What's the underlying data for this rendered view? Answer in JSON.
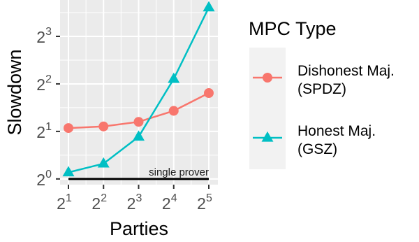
{
  "chart_data": {
    "type": "line",
    "x_label": "Parties",
    "y_label": "Slowdown",
    "x_scale": "log2",
    "y_scale": "log2",
    "x": [
      2,
      4,
      8,
      16,
      32
    ],
    "x_tick_labels": [
      {
        "base": "2",
        "exp": "1"
      },
      {
        "base": "2",
        "exp": "2"
      },
      {
        "base": "2",
        "exp": "3"
      },
      {
        "base": "2",
        "exp": "4"
      },
      {
        "base": "2",
        "exp": "5"
      }
    ],
    "y_ticks": [
      1,
      2,
      4,
      8
    ],
    "y_tick_labels": [
      {
        "base": "2",
        "exp": "0"
      },
      {
        "base": "2",
        "exp": "1"
      },
      {
        "base": "2",
        "exp": "2"
      },
      {
        "base": "2",
        "exp": "3"
      }
    ],
    "ylim": [
      0.92,
      13.6
    ],
    "grid": true,
    "panel_background": "#ebebeb",
    "series": [
      {
        "name": "Dishonest Maj.\n(SPDZ)",
        "label_line1": "Dishonest Maj.",
        "label_line2": "(SPDZ)",
        "color": "#F8766D",
        "marker": "circle",
        "values": [
          2.1,
          2.15,
          2.3,
          2.7,
          3.5
        ]
      },
      {
        "name": "Honest Maj.\n(GSZ)",
        "label_line1": "Honest Maj.",
        "label_line2": "(GSZ)",
        "color": "#00BFC4",
        "marker": "triangle",
        "values": [
          1.1,
          1.25,
          1.85,
          4.3,
          12.2
        ]
      }
    ],
    "reference_line": {
      "y": 1.0,
      "label": "single prover",
      "color": "#000000"
    },
    "legend": {
      "title": "MPC Type",
      "position": "right"
    }
  }
}
